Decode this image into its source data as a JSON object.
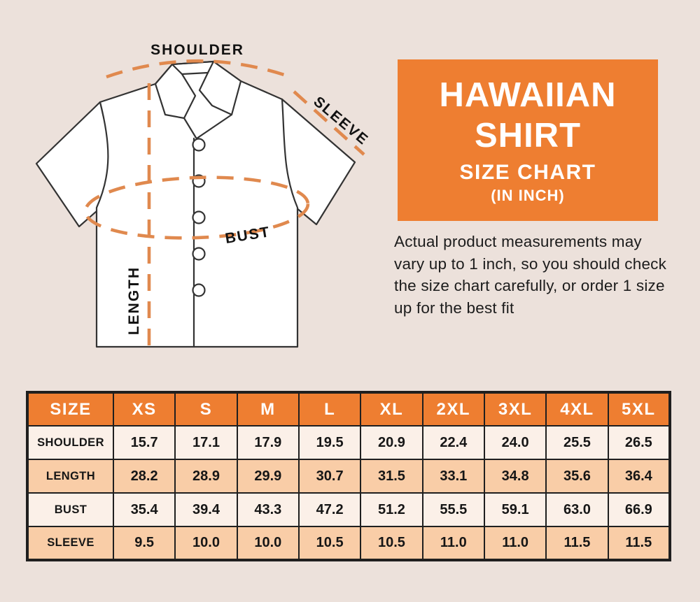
{
  "colors": {
    "background": "#ece1db",
    "accent_orange": "#ee7e31",
    "dash_orange": "#e0894e",
    "row_light": "#fbf0e8",
    "row_peach": "#f9cda7",
    "table_border": "#1f1f1f",
    "ink": "#161616"
  },
  "diagram": {
    "labels": {
      "shoulder": "SHOULDER",
      "sleeve": "SLEEVE",
      "bust": "BUST",
      "length": "LENGTH"
    }
  },
  "title_box": {
    "line1": "HAWAIIAN",
    "line2": "SHIRT",
    "line3": "SIZE CHART",
    "line4": "(IN INCH)"
  },
  "note": "Actual product measurements may vary up to 1 inch, so you should check the size chart carefully, or order 1 size up for the best fit",
  "chart_data": {
    "type": "table",
    "title": "HAWAIIAN SHIRT SIZE CHART (IN INCH)",
    "units": "inch",
    "columns": [
      "SIZE",
      "XS",
      "S",
      "M",
      "L",
      "XL",
      "2XL",
      "3XL",
      "4XL",
      "5XL"
    ],
    "rows": [
      {
        "label": "SHOULDER",
        "values": [
          "15.7",
          "17.1",
          "17.9",
          "19.5",
          "20.9",
          "22.4",
          "24.0",
          "25.5",
          "26.5"
        ]
      },
      {
        "label": "LENGTH",
        "values": [
          "28.2",
          "28.9",
          "29.9",
          "30.7",
          "31.5",
          "33.1",
          "34.8",
          "35.6",
          "36.4"
        ]
      },
      {
        "label": "BUST",
        "values": [
          "35.4",
          "39.4",
          "43.3",
          "47.2",
          "51.2",
          "55.5",
          "59.1",
          "63.0",
          "66.9"
        ]
      },
      {
        "label": "SLEEVE",
        "values": [
          "9.5",
          "10.0",
          "10.0",
          "10.5",
          "10.5",
          "11.0",
          "11.0",
          "11.5",
          "11.5"
        ]
      }
    ]
  }
}
